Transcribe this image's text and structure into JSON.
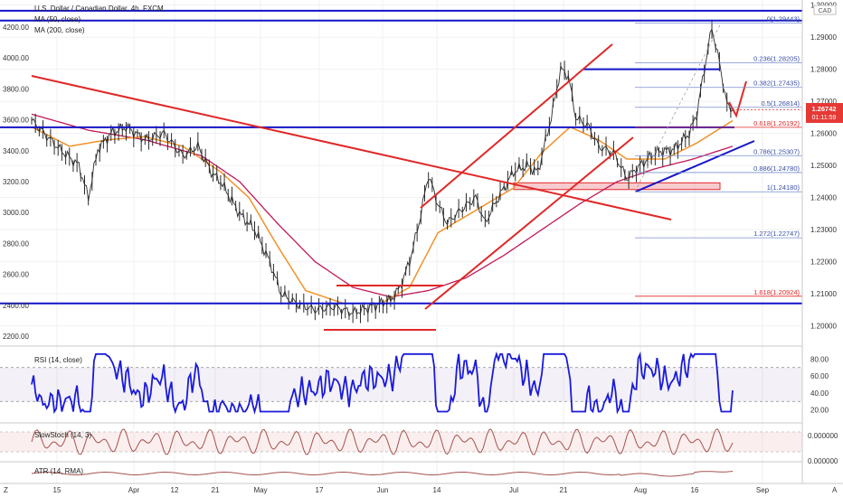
{
  "header": {
    "title": "U.S. Dollar / Canadian Dollar, 4h, FXCM",
    "indicators": [
      "MA (50, close)",
      "MA (200, close)"
    ],
    "currency": "CAD"
  },
  "price_badge": {
    "price": "1.26742",
    "countdown": "01:11:59"
  },
  "panes": {
    "rsi_title": "RSI (14, close)",
    "stoch_title": "SlowStoch (14, 3)",
    "atr_title": "ATR (14, RMA)"
  },
  "colors": {
    "price": "#2a2a2a",
    "ma50": "#f0922a",
    "ma200": "#c2185b",
    "blue_lines": "#1414c8",
    "red_lines": "#e02828",
    "rsi": "#1a1adc",
    "stoch": "#a5524f",
    "atr": "#a5524f"
  },
  "chart_data": {
    "type": "line",
    "symbol": "USDCAD",
    "interval": "4h",
    "left_axis_ticks": [
      "4200.00",
      "4000.00",
      "3800.00",
      "3600.00",
      "3400.00",
      "3200.00",
      "3000.00",
      "2800.00",
      "2600.00",
      "2400.00",
      "2200.00"
    ],
    "right_axis_ticks": [
      "1.30000",
      "1.29000",
      "1.28000",
      "1.27000",
      "1.26000",
      "1.25000",
      "1.24000",
      "1.23000",
      "1.22000",
      "1.21000",
      "1.20000"
    ],
    "x_axis_labels": [
      "15",
      "Apr",
      "12",
      "21",
      "May",
      "17",
      "Jun",
      "14",
      "Jul",
      "21",
      "Aug",
      "16",
      "Sep"
    ],
    "x_axis_corners": [
      "Z",
      "A"
    ],
    "ylim": [
      1.1965,
      1.3002
    ],
    "last_price": 1.26742,
    "price_path": [
      [
        0,
        1.264
      ],
      [
        15,
        1.255
      ],
      [
        25,
        1.25
      ],
      [
        30,
        1.24
      ],
      [
        35,
        1.255
      ],
      [
        42,
        1.26
      ],
      [
        50,
        1.262
      ],
      [
        60,
        1.258
      ],
      [
        70,
        1.26
      ],
      [
        80,
        1.253
      ],
      [
        88,
        1.256
      ],
      [
        95,
        1.248
      ],
      [
        100,
        1.245
      ],
      [
        110,
        1.235
      ],
      [
        118,
        1.23
      ],
      [
        126,
        1.22
      ],
      [
        132,
        1.21
      ],
      [
        140,
        1.207
      ],
      [
        150,
        1.205
      ],
      [
        160,
        1.206
      ],
      [
        170,
        1.204
      ],
      [
        180,
        1.206
      ],
      [
        190,
        1.208
      ],
      [
        195,
        1.212
      ],
      [
        200,
        1.22
      ],
      [
        205,
        1.232
      ],
      [
        210,
        1.247
      ],
      [
        215,
        1.238
      ],
      [
        220,
        1.232
      ],
      [
        225,
        1.235
      ],
      [
        235,
        1.24
      ],
      [
        240,
        1.232
      ],
      [
        245,
        1.238
      ],
      [
        255,
        1.248
      ],
      [
        262,
        1.25
      ],
      [
        268,
        1.248
      ],
      [
        275,
        1.265
      ],
      [
        280,
        1.28
      ],
      [
        284,
        1.278
      ],
      [
        288,
        1.265
      ],
      [
        295,
        1.262
      ],
      [
        300,
        1.256
      ],
      [
        308,
        1.254
      ],
      [
        315,
        1.246
      ],
      [
        320,
        1.249
      ],
      [
        330,
        1.254
      ],
      [
        340,
        1.255
      ],
      [
        348,
        1.26
      ],
      [
        352,
        1.266
      ],
      [
        356,
        1.28
      ],
      [
        360,
        1.293
      ],
      [
        364,
        1.282
      ],
      [
        368,
        1.269
      ],
      [
        371,
        1.2674
      ]
    ],
    "ma50_path": [
      [
        0,
        1.262
      ],
      [
        20,
        1.256
      ],
      [
        40,
        1.258
      ],
      [
        60,
        1.259
      ],
      [
        80,
        1.256
      ],
      [
        100,
        1.248
      ],
      [
        115,
        1.24
      ],
      [
        130,
        1.225
      ],
      [
        145,
        1.211
      ],
      [
        165,
        1.207
      ],
      [
        185,
        1.207
      ],
      [
        200,
        1.212
      ],
      [
        215,
        1.229
      ],
      [
        235,
        1.236
      ],
      [
        255,
        1.243
      ],
      [
        270,
        1.254
      ],
      [
        285,
        1.262
      ],
      [
        300,
        1.258
      ],
      [
        315,
        1.252
      ],
      [
        335,
        1.252
      ],
      [
        352,
        1.257
      ],
      [
        371,
        1.264
      ]
    ],
    "ma200_path": [
      [
        0,
        1.266
      ],
      [
        30,
        1.261
      ],
      [
        60,
        1.258
      ],
      [
        90,
        1.253
      ],
      [
        110,
        1.245
      ],
      [
        130,
        1.232
      ],
      [
        150,
        1.22
      ],
      [
        170,
        1.212
      ],
      [
        190,
        1.209
      ],
      [
        210,
        1.211
      ],
      [
        230,
        1.215
      ],
      [
        250,
        1.222
      ],
      [
        270,
        1.23
      ],
      [
        290,
        1.238
      ],
      [
        310,
        1.245
      ],
      [
        330,
        1.249
      ],
      [
        350,
        1.252
      ],
      [
        371,
        1.256
      ]
    ],
    "horizontal_levels": [
      1.29825,
      1.28,
      1.26192,
      1.207
    ],
    "fibonacci": {
      "levels": [
        {
          "ratio": "0",
          "value": "1.29443",
          "y": 1.29443
        },
        {
          "ratio": "0.236",
          "value": "1.28205",
          "y": 1.28205
        },
        {
          "ratio": "0.382",
          "value": "1.27435",
          "y": 1.27435
        },
        {
          "ratio": "0.5",
          "value": "1.26814",
          "y": 1.26814
        },
        {
          "ratio": "0.618",
          "value": "1.26192",
          "y": 1.26192
        },
        {
          "ratio": "0.786",
          "value": "1.25307",
          "y": 1.25307
        },
        {
          "ratio": "0.886",
          "value": "1.24780",
          "y": 1.2478
        },
        {
          "ratio": "1",
          "value": "1.24180",
          "y": 1.2418
        },
        {
          "ratio": "1.272",
          "value": "1.22747",
          "y": 1.22747
        },
        {
          "ratio": "1.618",
          "value": "1.20924",
          "y": 1.20924
        }
      ]
    },
    "rsi": {
      "ylim": [
        10,
        90
      ],
      "ticks": [
        "80.00",
        "60.00",
        "40.00",
        "20.00"
      ],
      "bands": [
        30,
        70
      ],
      "last": 43
    },
    "stoch": {
      "ticks": [
        "0.000000"
      ]
    },
    "atr": {
      "ticks": [
        "0.000000"
      ]
    }
  }
}
